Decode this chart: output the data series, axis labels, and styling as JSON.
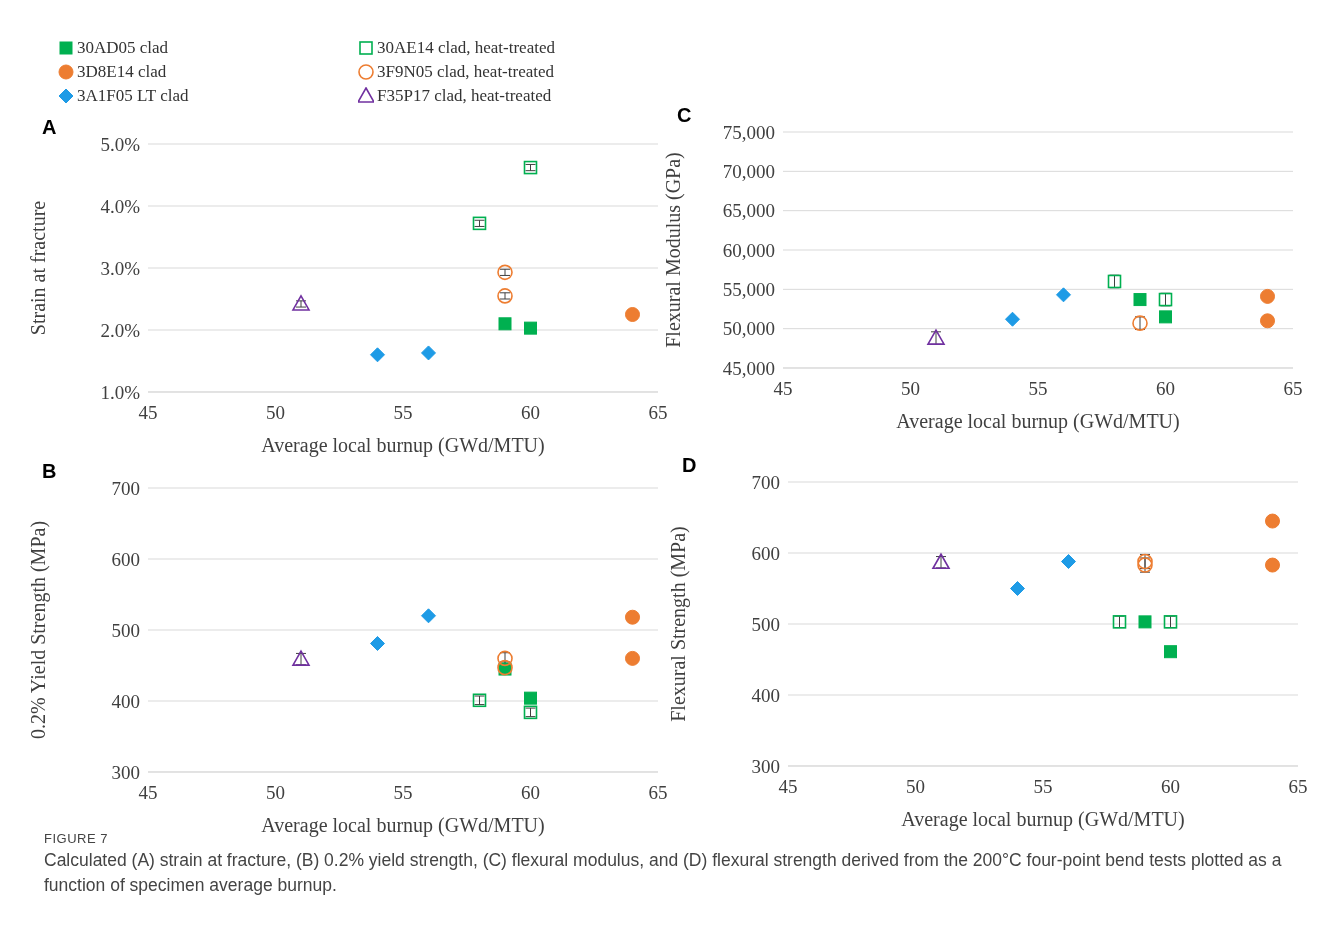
{
  "chart_data": [
    {
      "type": "scatter",
      "title": "A",
      "xlabel": "Average local burnup (GWd/MTU)",
      "ylabel": "Strain at fracture",
      "xlim": [
        45,
        65
      ],
      "xticks": [
        45,
        50,
        55,
        60,
        65
      ],
      "ylim": [
        1,
        5
      ],
      "yticks": [
        {
          "value": 1,
          "label": "1.0%"
        },
        {
          "value": 2,
          "label": "2.0%"
        },
        {
          "value": 3,
          "label": "3.0%"
        },
        {
          "value": 4,
          "label": "4.0%"
        },
        {
          "value": 5,
          "label": "5.0%"
        }
      ],
      "grid": "y",
      "legend": "top",
      "annotations": [
        "FIGURE 7",
        "Calculated (A) strain at fracture, (B) 0.2% yield strength, (C) flexural modulus, and (D) flexural strength derived from the 200°C four-point bend tests plotted as a function of specimen average burnup."
      ],
      "series": [
        {
          "name": "30AD05 clad",
          "color": "#00b050",
          "marker": "square",
          "x": [
            59,
            60
          ],
          "values": [
            2.1,
            2.03
          ]
        },
        {
          "name": "30AE14 clad, heat-treated",
          "color": "#00b050",
          "marker": "square",
          "x": [
            58,
            60
          ],
          "values": [
            3.72,
            4.62
          ],
          "errors": [
            0.05,
            0.05
          ]
        },
        {
          "name": "3D8E14 clad",
          "color": "#ed7d31",
          "marker": "circle",
          "x": [
            64
          ],
          "values": [
            2.25
          ]
        },
        {
          "name": "3F9N05 clad, heat-treated",
          "color": "#ed7d31",
          "marker": "circle",
          "x": [
            59,
            59
          ],
          "values": [
            2.93,
            2.55
          ],
          "errors": [
            0.05,
            0.05
          ]
        },
        {
          "name": "3A1F05 LT clad",
          "color": "#1e9be6",
          "marker": "diamond",
          "x": [
            54,
            56
          ],
          "values": [
            1.6,
            1.63
          ]
        },
        {
          "name": "F35P17 clad, heat-treated",
          "color": "#7030a0",
          "marker": "triangle",
          "x": [
            51
          ],
          "values": [
            2.42
          ],
          "errors": [
            0.05
          ]
        }
      ]
    },
    {
      "type": "scatter",
      "title": "B",
      "xlabel": "Average local burnup (GWd/MTU)",
      "ylabel": "0.2% Yield Strength (MPa)",
      "xlim": [
        45,
        65
      ],
      "xticks": [
        45,
        50,
        55,
        60,
        65
      ],
      "ylim": [
        300,
        700
      ],
      "yticks": [
        300,
        400,
        500,
        600,
        700
      ],
      "grid": "y",
      "series": [
        {
          "color": "#00b050",
          "marker": "square",
          "x": [
            59,
            60
          ],
          "values": [
            445,
            404
          ]
        },
        {
          "color": "#00b050",
          "marker": "square",
          "x": [
            58,
            60
          ],
          "values": [
            401,
            384
          ],
          "errors": [
            6,
            6
          ]
        },
        {
          "color": "#ed7d31",
          "marker": "circle",
          "x": [
            64,
            64
          ],
          "values": [
            518,
            460
          ]
        },
        {
          "color": "#ed7d31",
          "marker": "circle",
          "x": [
            59,
            59
          ],
          "values": [
            460,
            447
          ],
          "errors": [
            8,
            8
          ]
        },
        {
          "color": "#1e9be6",
          "marker": "diamond",
          "x": [
            54,
            56
          ],
          "values": [
            481,
            520
          ]
        },
        {
          "color": "#7030a0",
          "marker": "triangle",
          "x": [
            51
          ],
          "values": [
            459
          ],
          "errors": [
            8
          ]
        }
      ]
    },
    {
      "type": "scatter",
      "title": "C",
      "xlabel": "Average local burnup (GWd/MTU)",
      "ylabel": "Flexural Modulus (GPa)",
      "xlim": [
        45,
        65
      ],
      "xticks": [
        45,
        50,
        55,
        60,
        65
      ],
      "ylim": [
        45000,
        75000
      ],
      "yticks": [
        {
          "value": 45000,
          "label": "45,000"
        },
        {
          "value": 50000,
          "label": "50,000"
        },
        {
          "value": 55000,
          "label": "55,000"
        },
        {
          "value": 60000,
          "label": "60,000"
        },
        {
          "value": 65000,
          "label": "65,000"
        },
        {
          "value": 70000,
          "label": "70,000"
        },
        {
          "value": 75000,
          "label": "75,000"
        }
      ],
      "grid": "y",
      "series": [
        {
          "color": "#00b050",
          "marker": "square",
          "x": [
            59,
            60
          ],
          "values": [
            53700,
            51500
          ]
        },
        {
          "color": "#00b050",
          "marker": "square",
          "x": [
            58,
            60
          ],
          "values": [
            56000,
            53700
          ],
          "errors": [
            800,
            800
          ]
        },
        {
          "color": "#ed7d31",
          "marker": "circle",
          "x": [
            64,
            64
          ],
          "values": [
            54100,
            51000
          ]
        },
        {
          "color": "#ed7d31",
          "marker": "circle",
          "x": [
            59
          ],
          "values": [
            50700
          ],
          "errors": [
            800
          ]
        },
        {
          "color": "#1e9be6",
          "marker": "diamond",
          "x": [
            54,
            56
          ],
          "values": [
            51200,
            54300
          ]
        },
        {
          "color": "#7030a0",
          "marker": "triangle",
          "x": [
            51
          ],
          "values": [
            48800
          ],
          "errors": [
            800
          ]
        }
      ]
    },
    {
      "type": "scatter",
      "title": "D",
      "xlabel": "Average local burnup (GWd/MTU)",
      "ylabel": "Flexural Strength (MPa)",
      "xlim": [
        45,
        65
      ],
      "xticks": [
        45,
        50,
        55,
        60,
        65
      ],
      "ylim": [
        300,
        700
      ],
      "yticks": [
        300,
        400,
        500,
        600,
        700
      ],
      "grid": "y",
      "series": [
        {
          "color": "#00b050",
          "marker": "square",
          "x": [
            59,
            60
          ],
          "values": [
            503,
            461
          ]
        },
        {
          "color": "#00b050",
          "marker": "square",
          "x": [
            58,
            60
          ],
          "values": [
            503,
            503
          ],
          "errors": [
            8,
            8
          ]
        },
        {
          "color": "#ed7d31",
          "marker": "circle",
          "x": [
            64,
            64
          ],
          "values": [
            645,
            583
          ]
        },
        {
          "color": "#ed7d31",
          "marker": "circle",
          "x": [
            59,
            59
          ],
          "values": [
            588,
            583
          ],
          "errors": [
            10,
            10
          ]
        },
        {
          "color": "#1e9be6",
          "marker": "diamond",
          "x": [
            54,
            56
          ],
          "values": [
            550,
            588
          ]
        },
        {
          "color": "#7030a0",
          "marker": "triangle",
          "x": [
            51
          ],
          "values": [
            587
          ],
          "errors": [
            8
          ]
        }
      ]
    }
  ]
}
